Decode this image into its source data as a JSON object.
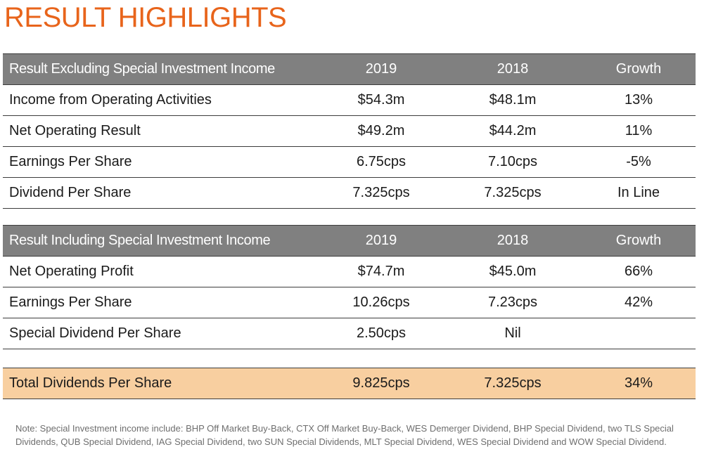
{
  "title": "RESULT HIGHLIGHTS",
  "colors": {
    "title": "#e8641b",
    "header_bg": "#808080",
    "total_bg": "#f8cfa0"
  },
  "table_excluding": {
    "headers": [
      "Result Excluding Special Investment Income",
      "2019",
      "2018",
      "Growth"
    ],
    "rows": [
      [
        "Income from Operating Activities",
        "$54.3m",
        "$48.1m",
        "13%"
      ],
      [
        "Net Operating Result",
        "$49.2m",
        "$44.2m",
        "11%"
      ],
      [
        "Earnings Per Share",
        "6.75cps",
        "7.10cps",
        "-5%"
      ],
      [
        "Dividend Per Share",
        "7.325cps",
        "7.325cps",
        "In Line"
      ]
    ]
  },
  "table_including": {
    "headers": [
      "Result Including Special Investment Income",
      "2019",
      "2018",
      "Growth"
    ],
    "rows": [
      [
        "Net Operating Profit",
        "$74.7m",
        "$45.0m",
        "66%"
      ],
      [
        "Earnings Per Share",
        "10.26cps",
        "7.23cps",
        "42%"
      ],
      [
        "Special Dividend Per Share",
        "2.50cps",
        "Nil",
        ""
      ]
    ]
  },
  "total_row": [
    "Total Dividends Per Share",
    "9.825cps",
    "7.325cps",
    "34%"
  ],
  "note": "Note: Special Investment income include: BHP Off Market Buy-Back, CTX Off Market Buy-Back, WES Demerger Dividend, BHP Special Dividend, two TLS Special Dividends, QUB Special Dividend, IAG Special Dividend, two SUN Special Dividends, MLT Special Dividend, WES Special Dividend and WOW Special Dividend."
}
